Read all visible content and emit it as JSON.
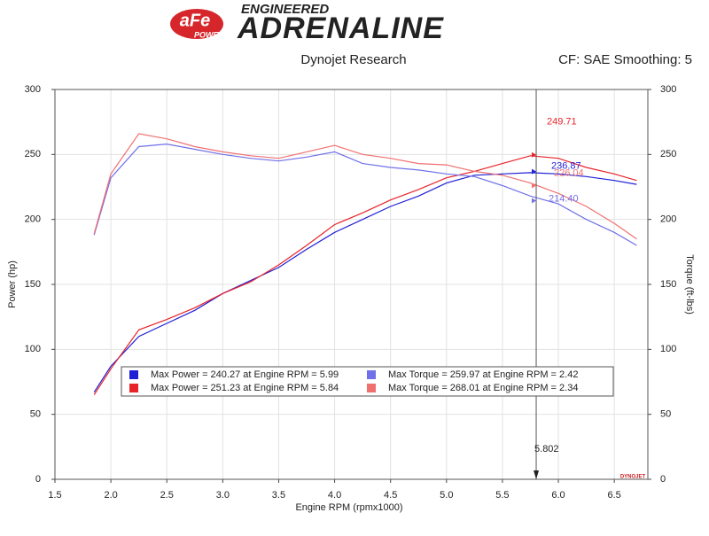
{
  "header": {
    "logo": "aFe",
    "logo_sub": "POWER",
    "brand_top": "ENGINEERED",
    "brand": "ADRENALINE"
  },
  "chart_data": {
    "type": "line",
    "title": "Dynojet Research",
    "subtitle": "CF: SAE Smoothing: 5",
    "x_label": "Engine RPM (rpmx1000)",
    "y_label": "Power (hp)",
    "y2_label": "Torque (ft-lbs)",
    "watermark": "DYNOJET",
    "grid": true,
    "xlim": [
      1.5,
      6.8
    ],
    "ylim": [
      0,
      300
    ],
    "y2lim": [
      0,
      300
    ],
    "xticks": [
      1.5,
      {
        "value": 2,
        "label": "2.0"
      },
      2.5,
      {
        "value": 3,
        "label": "3.0"
      },
      3.5,
      {
        "value": 4,
        "label": "4.0"
      },
      4.5,
      {
        "value": 5,
        "label": "5.0"
      },
      5.5,
      {
        "value": 6,
        "label": "6.0"
      },
      6.5
    ],
    "yticks": [
      0,
      50,
      100,
      150,
      200,
      250,
      300
    ],
    "y2ticks": [
      0,
      50,
      100,
      150,
      200,
      250,
      300
    ],
    "x": [
      1.85,
      2.0,
      2.25,
      2.5,
      2.75,
      3.0,
      3.25,
      3.5,
      3.75,
      4.0,
      4.25,
      4.5,
      4.75,
      5.0,
      5.25,
      5.5,
      5.75,
      6.0,
      6.25,
      6.5,
      6.7
    ],
    "series": [
      {
        "name": "Max Power = 240.27 at Engine RPM = 5.99",
        "color": "#1f1fd6",
        "values": [
          67,
          87,
          110,
          120,
          130,
          143,
          153,
          163,
          177,
          190,
          200,
          210,
          218,
          228,
          234,
          235,
          236,
          235,
          233,
          230,
          227
        ]
      },
      {
        "name": "Max Power = 251.23 at Engine RPM = 5.84",
        "color": "#e8242a",
        "values": [
          65,
          85,
          115,
          123,
          132,
          143,
          152,
          165,
          180,
          196,
          205,
          215,
          223,
          232,
          237,
          243,
          249,
          247,
          240,
          235,
          230
        ]
      },
      {
        "name": "Max Torque = 259.97 at Engine RPM = 2.42",
        "color": "#7070e8",
        "axis": "y2",
        "values": [
          188,
          232,
          256,
          258,
          254,
          250,
          247,
          245,
          248,
          252,
          243,
          240,
          238,
          235,
          233,
          226,
          218,
          212,
          200,
          190,
          180
        ]
      },
      {
        "name": "Max Torque = 268.01 at Engine RPM = 2.34",
        "color": "#f07070",
        "axis": "y2",
        "values": [
          189,
          235,
          266,
          262,
          256,
          252,
          249,
          247,
          252,
          257,
          250,
          247,
          243,
          242,
          237,
          234,
          228,
          220,
          210,
          197,
          185
        ]
      }
    ],
    "cursor": {
      "x": 5.802,
      "values": [
        236.87,
        249.71,
        214.4,
        226.04
      ],
      "value_labels": [
        "236.87",
        "249.71",
        "214.40",
        "226.04"
      ]
    }
  }
}
